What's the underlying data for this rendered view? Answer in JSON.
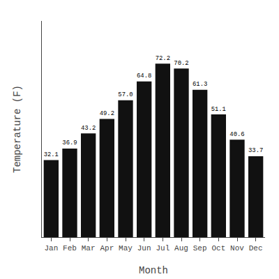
{
  "chart_data": {
    "type": "bar",
    "categories": [
      "Jan",
      "Feb",
      "Mar",
      "Apr",
      "May",
      "Jun",
      "Jul",
      "Aug",
      "Sep",
      "Oct",
      "Nov",
      "Dec"
    ],
    "values": [
      32.1,
      36.9,
      43.2,
      49.2,
      57.0,
      64.8,
      72.2,
      70.2,
      61.3,
      51.1,
      40.6,
      33.7
    ],
    "value_labels": [
      "32.1",
      "36.9",
      "43.2",
      "49.2",
      "57.0",
      "64.8",
      "72.2",
      "70.2",
      "61.3",
      "51.1",
      "40.6",
      "33.7"
    ],
    "color": "#111111",
    "x_label": "Month",
    "y_label": "Temperature (F)",
    "ylim": [
      0,
      90
    ],
    "yticks": [],
    "grid": false,
    "data_labels": true,
    "tick_labels": "x"
  }
}
